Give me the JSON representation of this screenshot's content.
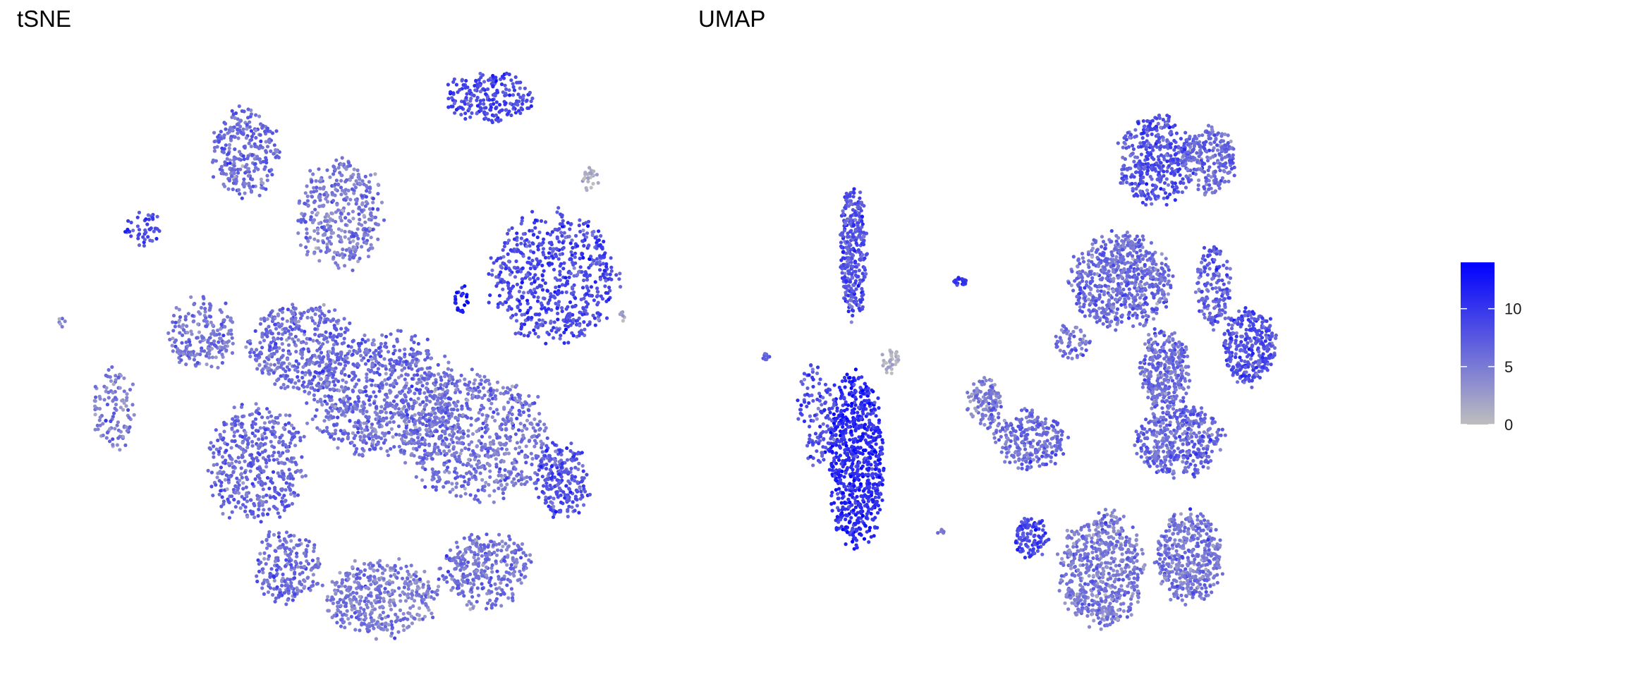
{
  "chart_data": [
    {
      "type": "scatter",
      "title": "tSNE",
      "xlabel": "",
      "ylabel": "",
      "grid": false,
      "legend": "right",
      "clusters": [
        {
          "cx": -6.5,
          "cy": 7.5,
          "rx": 1.6,
          "ry": 1.8,
          "value": 6,
          "n": 280
        },
        {
          "cx": -2.5,
          "cy": 5.2,
          "rx": 2.0,
          "ry": 2.3,
          "value": 5,
          "n": 380
        },
        {
          "cx": 3.8,
          "cy": 9.6,
          "rx": 2.1,
          "ry": 1.0,
          "value": 9,
          "n": 220
        },
        {
          "cx": 6.5,
          "cy": 2.8,
          "rx": 3.0,
          "ry": 2.7,
          "value": 8.5,
          "n": 620
        },
        {
          "cx": -10.8,
          "cy": 4.6,
          "rx": 0.9,
          "ry": 0.8,
          "value": 9,
          "n": 45
        },
        {
          "cx": -8.3,
          "cy": 0.7,
          "rx": 1.6,
          "ry": 1.5,
          "value": 5.5,
          "n": 200
        },
        {
          "cx": -12.0,
          "cy": -2.2,
          "rx": 1.0,
          "ry": 1.7,
          "value": 5,
          "n": 110
        },
        {
          "cx": -4.2,
          "cy": 0.2,
          "rx": 2.4,
          "ry": 1.9,
          "value": 6,
          "n": 420
        },
        {
          "cx": -0.8,
          "cy": -1.6,
          "rx": 3.5,
          "ry": 2.6,
          "value": 6,
          "n": 800
        },
        {
          "cx": -6.0,
          "cy": -4.2,
          "rx": 2.3,
          "ry": 2.5,
          "value": 6.5,
          "n": 460
        },
        {
          "cx": 3.2,
          "cy": -3.2,
          "rx": 3.4,
          "ry": 2.6,
          "value": 5.5,
          "n": 720
        },
        {
          "cx": 6.8,
          "cy": -4.8,
          "rx": 1.3,
          "ry": 1.6,
          "value": 8,
          "n": 220
        },
        {
          "cx": -4.7,
          "cy": -8.0,
          "rx": 1.6,
          "ry": 1.5,
          "value": 6,
          "n": 220
        },
        {
          "cx": -0.8,
          "cy": -9.2,
          "rx": 2.6,
          "ry": 1.6,
          "value": 5,
          "n": 420
        },
        {
          "cx": 3.6,
          "cy": -8.2,
          "rx": 2.1,
          "ry": 1.6,
          "value": 5.5,
          "n": 320
        },
        {
          "cx": 2.6,
          "cy": 2.0,
          "rx": 0.35,
          "ry": 0.6,
          "value": 12,
          "n": 25
        },
        {
          "cx": 8.0,
          "cy": 6.5,
          "rx": 0.35,
          "ry": 0.6,
          "value": 1,
          "n": 25
        },
        {
          "cx": -14.2,
          "cy": 1.2,
          "rx": 0.2,
          "ry": 0.3,
          "value": 5,
          "n": 6
        },
        {
          "cx": 9.3,
          "cy": 1.3,
          "rx": 0.2,
          "ry": 0.3,
          "value": 1,
          "n": 6
        }
      ],
      "xlim": [
        -15,
        10
      ],
      "ylim": [
        -11,
        11
      ]
    },
    {
      "type": "scatter",
      "title": "UMAP",
      "xlabel": "",
      "ylabel": "",
      "grid": false,
      "legend": "right",
      "clusters": [
        {
          "cx": -9.0,
          "cy": 4.8,
          "rx": 0.6,
          "ry": 3.6,
          "value": 8,
          "n": 320
        },
        {
          "cx": -8.9,
          "cy": -5.2,
          "rx": 1.3,
          "ry": 4.6,
          "value": 11,
          "n": 720
        },
        {
          "cx": -10.5,
          "cy": -3.0,
          "rx": 0.9,
          "ry": 2.6,
          "value": 8,
          "n": 120
        },
        {
          "cx": -7.5,
          "cy": -0.4,
          "rx": 0.45,
          "ry": 0.7,
          "value": 1,
          "n": 30
        },
        {
          "cx": -4.6,
          "cy": 3.4,
          "rx": 0.35,
          "ry": 0.25,
          "value": 10,
          "n": 22
        },
        {
          "cx": -12.6,
          "cy": -0.2,
          "rx": 0.2,
          "ry": 0.2,
          "value": 7,
          "n": 10
        },
        {
          "cx": -3.6,
          "cy": -2.4,
          "rx": 0.8,
          "ry": 1.4,
          "value": 5,
          "n": 120
        },
        {
          "cx": -1.7,
          "cy": -4.2,
          "rx": 1.6,
          "ry": 1.6,
          "value": 6,
          "n": 260
        },
        {
          "cx": -1.7,
          "cy": -8.8,
          "rx": 0.8,
          "ry": 1.1,
          "value": 9,
          "n": 110
        },
        {
          "cx": -5.4,
          "cy": -8.6,
          "rx": 0.2,
          "ry": 0.2,
          "value": 5,
          "n": 8
        },
        {
          "cx": 3.4,
          "cy": 9.2,
          "rx": 1.7,
          "ry": 2.4,
          "value": 8,
          "n": 380
        },
        {
          "cx": 5.6,
          "cy": 9.2,
          "rx": 1.2,
          "ry": 1.8,
          "value": 6,
          "n": 240
        },
        {
          "cx": 2.0,
          "cy": 3.4,
          "rx": 2.3,
          "ry": 2.5,
          "value": 6,
          "n": 640
        },
        {
          "cx": 5.8,
          "cy": 3.2,
          "rx": 0.8,
          "ry": 2.2,
          "value": 7,
          "n": 160
        },
        {
          "cx": 7.3,
          "cy": 0.3,
          "rx": 1.2,
          "ry": 2.0,
          "value": 8,
          "n": 320
        },
        {
          "cx": 3.8,
          "cy": -0.8,
          "rx": 1.2,
          "ry": 2.1,
          "value": 6,
          "n": 320
        },
        {
          "cx": 4.4,
          "cy": -4.2,
          "rx": 2.0,
          "ry": 1.9,
          "value": 6.5,
          "n": 420
        },
        {
          "cx": 1.2,
          "cy": -10.4,
          "rx": 1.9,
          "ry": 3.0,
          "value": 5,
          "n": 620
        },
        {
          "cx": 4.8,
          "cy": -9.8,
          "rx": 1.5,
          "ry": 2.4,
          "value": 5.5,
          "n": 440
        },
        {
          "cx": 0.0,
          "cy": 0.5,
          "rx": 0.8,
          "ry": 1.0,
          "value": 6,
          "n": 60
        }
      ],
      "xlim": [
        -13.5,
        10
      ],
      "ylim": [
        -14,
        14
      ]
    }
  ],
  "legend": {
    "ticks": [
      0,
      5,
      10
    ],
    "min": 0,
    "max": 14,
    "low_color": "#bebebe",
    "high_color": "#0000ff"
  },
  "labels": {
    "tsne_title": "tSNE",
    "umap_title": "UMAP"
  }
}
